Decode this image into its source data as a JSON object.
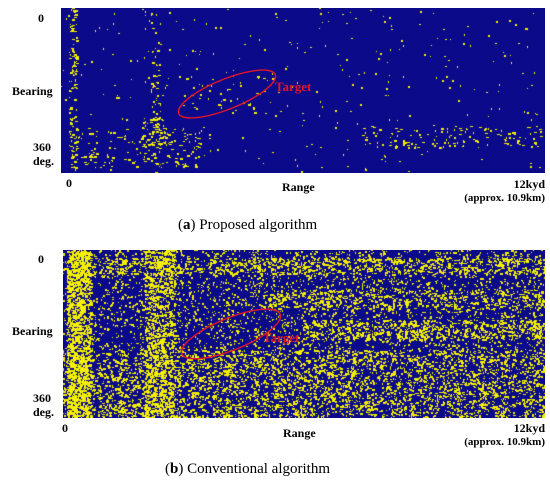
{
  "figures": [
    {
      "y_top_label": "0",
      "y_axis_label": "Bearing",
      "y_bottom_label_line1": "360",
      "y_bottom_label_line2": "deg.",
      "x_left_label": "0",
      "x_axis_label": "Range",
      "x_right_label_line1": "12kyd",
      "x_right_label_line2": "(approx. 10.9km)",
      "annotation": "Target",
      "caption_letter": "a",
      "caption_text": " Proposed algorithm"
    },
    {
      "y_top_label": "0",
      "y_axis_label": "Bearing",
      "y_bottom_label_line1": "360",
      "y_bottom_label_line2": "deg.",
      "x_left_label": "0",
      "x_axis_label": "Range",
      "x_right_label_line1": "12kyd",
      "x_right_label_line2": "(approx. 10.9km)",
      "annotation": "Target",
      "caption_letter": "b",
      "caption_text": " Conventional algorithm"
    }
  ],
  "colors": {
    "background": "#0a0a8a",
    "detections": "#f5f000",
    "annotation": "#e0142a"
  }
}
